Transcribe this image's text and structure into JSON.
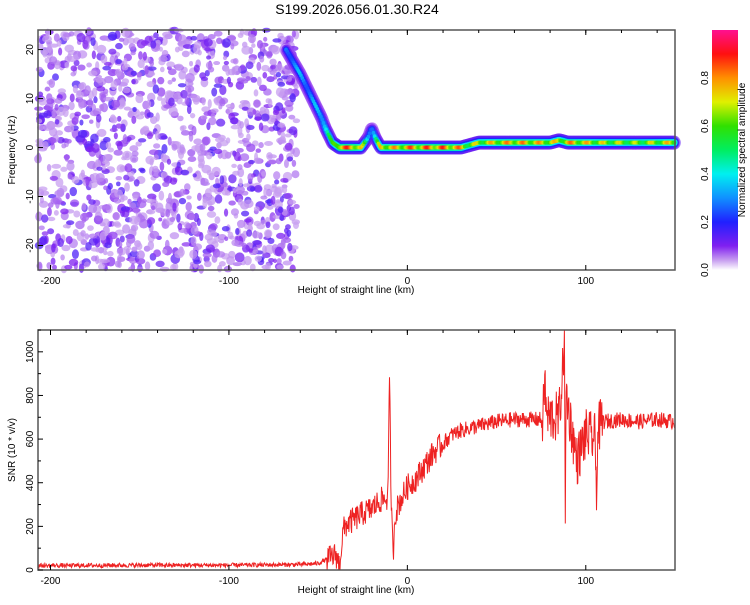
{
  "title": "S199.2026.056.01.30.R24",
  "chart_data": [
    {
      "type": "heatmap",
      "xlabel": "Height of straight line (km)",
      "ylabel": "Frequency (Hz)",
      "xlim": [
        -207,
        150
      ],
      "ylim": [
        -25,
        24
      ],
      "xticks": [
        -200,
        -100,
        0,
        100
      ],
      "yticks": [
        -20,
        -10,
        0,
        10,
        20
      ],
      "noise_region_x": [
        -207,
        -62
      ],
      "ridge": {
        "height": [
          -68,
          -64,
          -60,
          -56,
          -52,
          -48,
          -46,
          -44,
          -42,
          -38,
          -34,
          -30,
          -26,
          -22,
          -20,
          -18,
          -15,
          -10,
          -5,
          0,
          5,
          10,
          20,
          30,
          35,
          40,
          60,
          80,
          85,
          90,
          100,
          110,
          130,
          150
        ],
        "frequency": [
          20,
          17.5,
          15,
          12,
          9,
          6,
          4,
          2.5,
          1,
          0,
          0,
          0,
          0,
          2,
          4,
          2,
          0,
          0,
          0,
          0,
          0,
          0,
          0,
          0,
          0.5,
          1,
          1,
          1,
          1.5,
          1,
          1,
          1,
          1,
          1
        ],
        "amplitude": [
          0.3,
          0.35,
          0.35,
          0.35,
          0.35,
          0.4,
          0.5,
          0.55,
          0.6,
          0.9,
          0.9,
          0.9,
          0.8,
          0.4,
          0.35,
          0.5,
          0.8,
          0.85,
          0.8,
          0.9,
          0.85,
          0.9,
          0.9,
          0.85,
          0.7,
          0.75,
          0.85,
          0.8,
          0.75,
          0.85,
          0.8,
          0.75,
          0.7,
          0.8
        ]
      },
      "colorbar": {
        "label": "Normalized spectral amplitude",
        "range": [
          0,
          1
        ],
        "ticks": [
          "0.0",
          "0.2",
          "0.4",
          "0.6",
          "0.8"
        ]
      }
    },
    {
      "type": "line",
      "xlabel": "Height of straight line (km)",
      "ylabel": "SNR (10 * v/v)",
      "xlim": [
        -207,
        150
      ],
      "ylim": [
        0,
        1100
      ],
      "xticks": [
        -200,
        -100,
        0,
        100
      ],
      "yticks": [
        0,
        200,
        400,
        600,
        800,
        1000
      ],
      "color": "#ee2222",
      "x": [
        -207,
        -150,
        -100,
        -60,
        -50,
        -45,
        -40,
        -38,
        -36,
        -34,
        -30,
        -25,
        -20,
        -15,
        -11,
        -10,
        -9,
        -8,
        -7,
        -5,
        0,
        5,
        10,
        15,
        20,
        25,
        30,
        40,
        50,
        60,
        70,
        76,
        77,
        78,
        85,
        87,
        88,
        88.5,
        89,
        90,
        93,
        95,
        100,
        105,
        106,
        107,
        110,
        120,
        130,
        140,
        150
      ],
      "y": [
        20,
        22,
        22,
        25,
        30,
        50,
        70,
        20,
        180,
        210,
        230,
        260,
        280,
        320,
        330,
        860,
        300,
        60,
        250,
        300,
        380,
        420,
        480,
        540,
        580,
        620,
        640,
        660,
        680,
        690,
        690,
        690,
        880,
        700,
        700,
        900,
        1100,
        170,
        850,
        750,
        600,
        500,
        620,
        600,
        390,
        650,
        680,
        690,
        680,
        690,
        680
      ],
      "noise_amplitude": [
        10,
        60
      ]
    }
  ]
}
